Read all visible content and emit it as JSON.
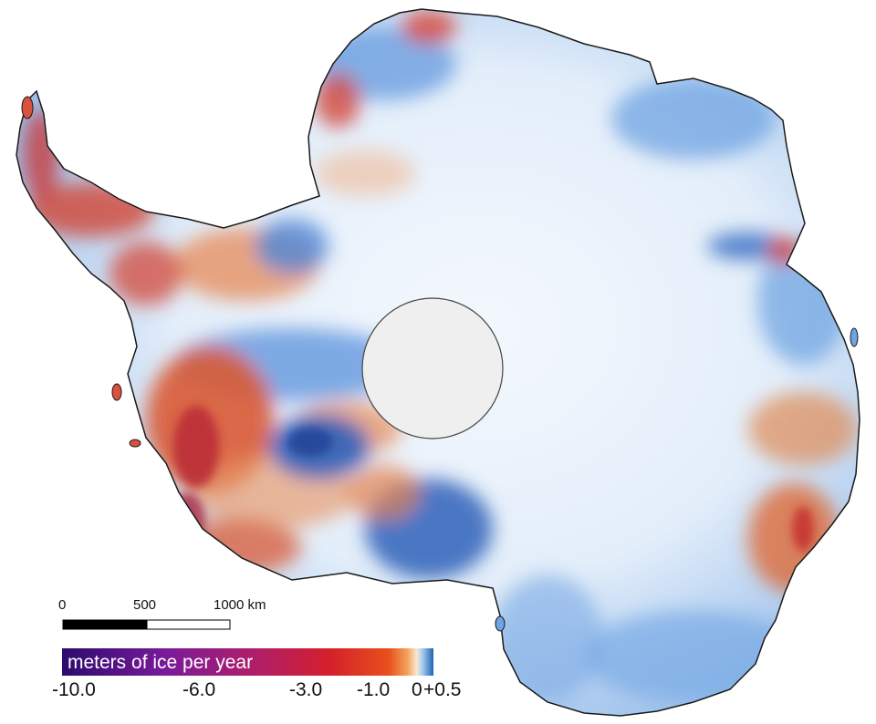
{
  "scale_bar": {
    "labels": [
      "0",
      "500",
      "1000 km"
    ]
  },
  "legend": {
    "title": "meters of ice per year",
    "ticks": [
      "-10.0",
      "-6.0",
      "-3.0",
      "-1.0",
      "0",
      "+0.5"
    ],
    "colors": {
      "loss_extreme": "#3a0a7a",
      "loss_high": "#8e1f9a",
      "loss_mid": "#c81e3c",
      "loss_low": "#e54d1d",
      "near_zero": "#f7d9b8",
      "gain": "#1f6fbf"
    }
  },
  "map_colors": {
    "interior_ice": "#e9f1fb",
    "gain_blue": "#5f97db",
    "deep_blue": "#2c5fb6",
    "thinning_orange": "#e6824a",
    "thinning_red": "#cc3a2b",
    "coastline": "#1a1a1a",
    "pole_hole": "#efefef"
  }
}
